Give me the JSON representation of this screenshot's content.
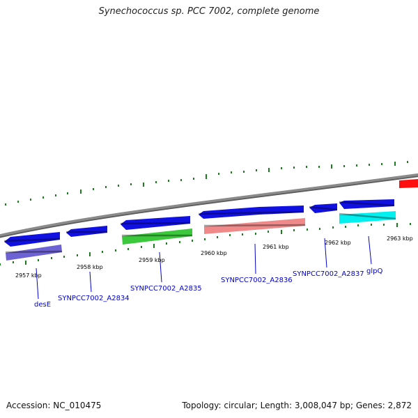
{
  "title": "Synechococcus sp. PCC 7002, complete genome",
  "footer": {
    "accession": "Accession: NC_010475",
    "summary": "Topology: circular; Length: 3,008,047 bp; Genes: 2,872"
  },
  "colors": {
    "backbone": "#8a8a8a",
    "tick": "#1e7a1e",
    "cds": "#1010e0",
    "gene_label": "#0000c8",
    "highlight": "#ff1010"
  },
  "ruler": {
    "labels": [
      "2957 kbp",
      "2958 kbp",
      "2959 kbp",
      "2960 kbp",
      "2961 kbp",
      "2962 kbp",
      "2963 kbp"
    ]
  },
  "features": [
    {
      "strand": "reverse",
      "start_kbp": 2956.96,
      "end_kbp": 2957.78,
      "color": "#1010e0"
    },
    {
      "strand": "reverse",
      "start_kbp": 2957.06,
      "end_kbp": 2957.78,
      "color": "#6d62d4",
      "label": "desE"
    },
    {
      "strand": "reverse",
      "start_kbp": 2957.93,
      "end_kbp": 2958.49,
      "color": "#1010e0",
      "label": "SYNPCC7002_A2834"
    },
    {
      "strand": "reverse",
      "start_kbp": 2958.69,
      "end_kbp": 2959.71,
      "color": "#1010e0"
    },
    {
      "strand": "reverse",
      "start_kbp": 2958.69,
      "end_kbp": 2959.71,
      "color": "#3cc83c",
      "label": "SYNPCC7002_A2835"
    },
    {
      "strand": "forward",
      "start_kbp": 2959.88,
      "end_kbp": 2961.34,
      "color": "#1010e0"
    },
    {
      "strand": "forward",
      "start_kbp": 2959.88,
      "end_kbp": 2961.34,
      "color": "#f08a8a",
      "label": "SYNPCC7002_A2836"
    },
    {
      "strand": "reverse",
      "start_kbp": 2961.41,
      "end_kbp": 2961.81,
      "color": "#1010e0",
      "label": "SYNPCC7002_A2837"
    },
    {
      "strand": "reverse",
      "start_kbp": 2961.89,
      "end_kbp": 2962.66,
      "color": "#1010e0"
    },
    {
      "strand": "reverse",
      "start_kbp": 2961.89,
      "end_kbp": 2962.66,
      "color": "#00f0f0",
      "label": "glpQ"
    },
    {
      "strand": "forward",
      "start_kbp": 2962.71,
      "end_kbp": 2963.02,
      "color": "#ff1010"
    }
  ]
}
